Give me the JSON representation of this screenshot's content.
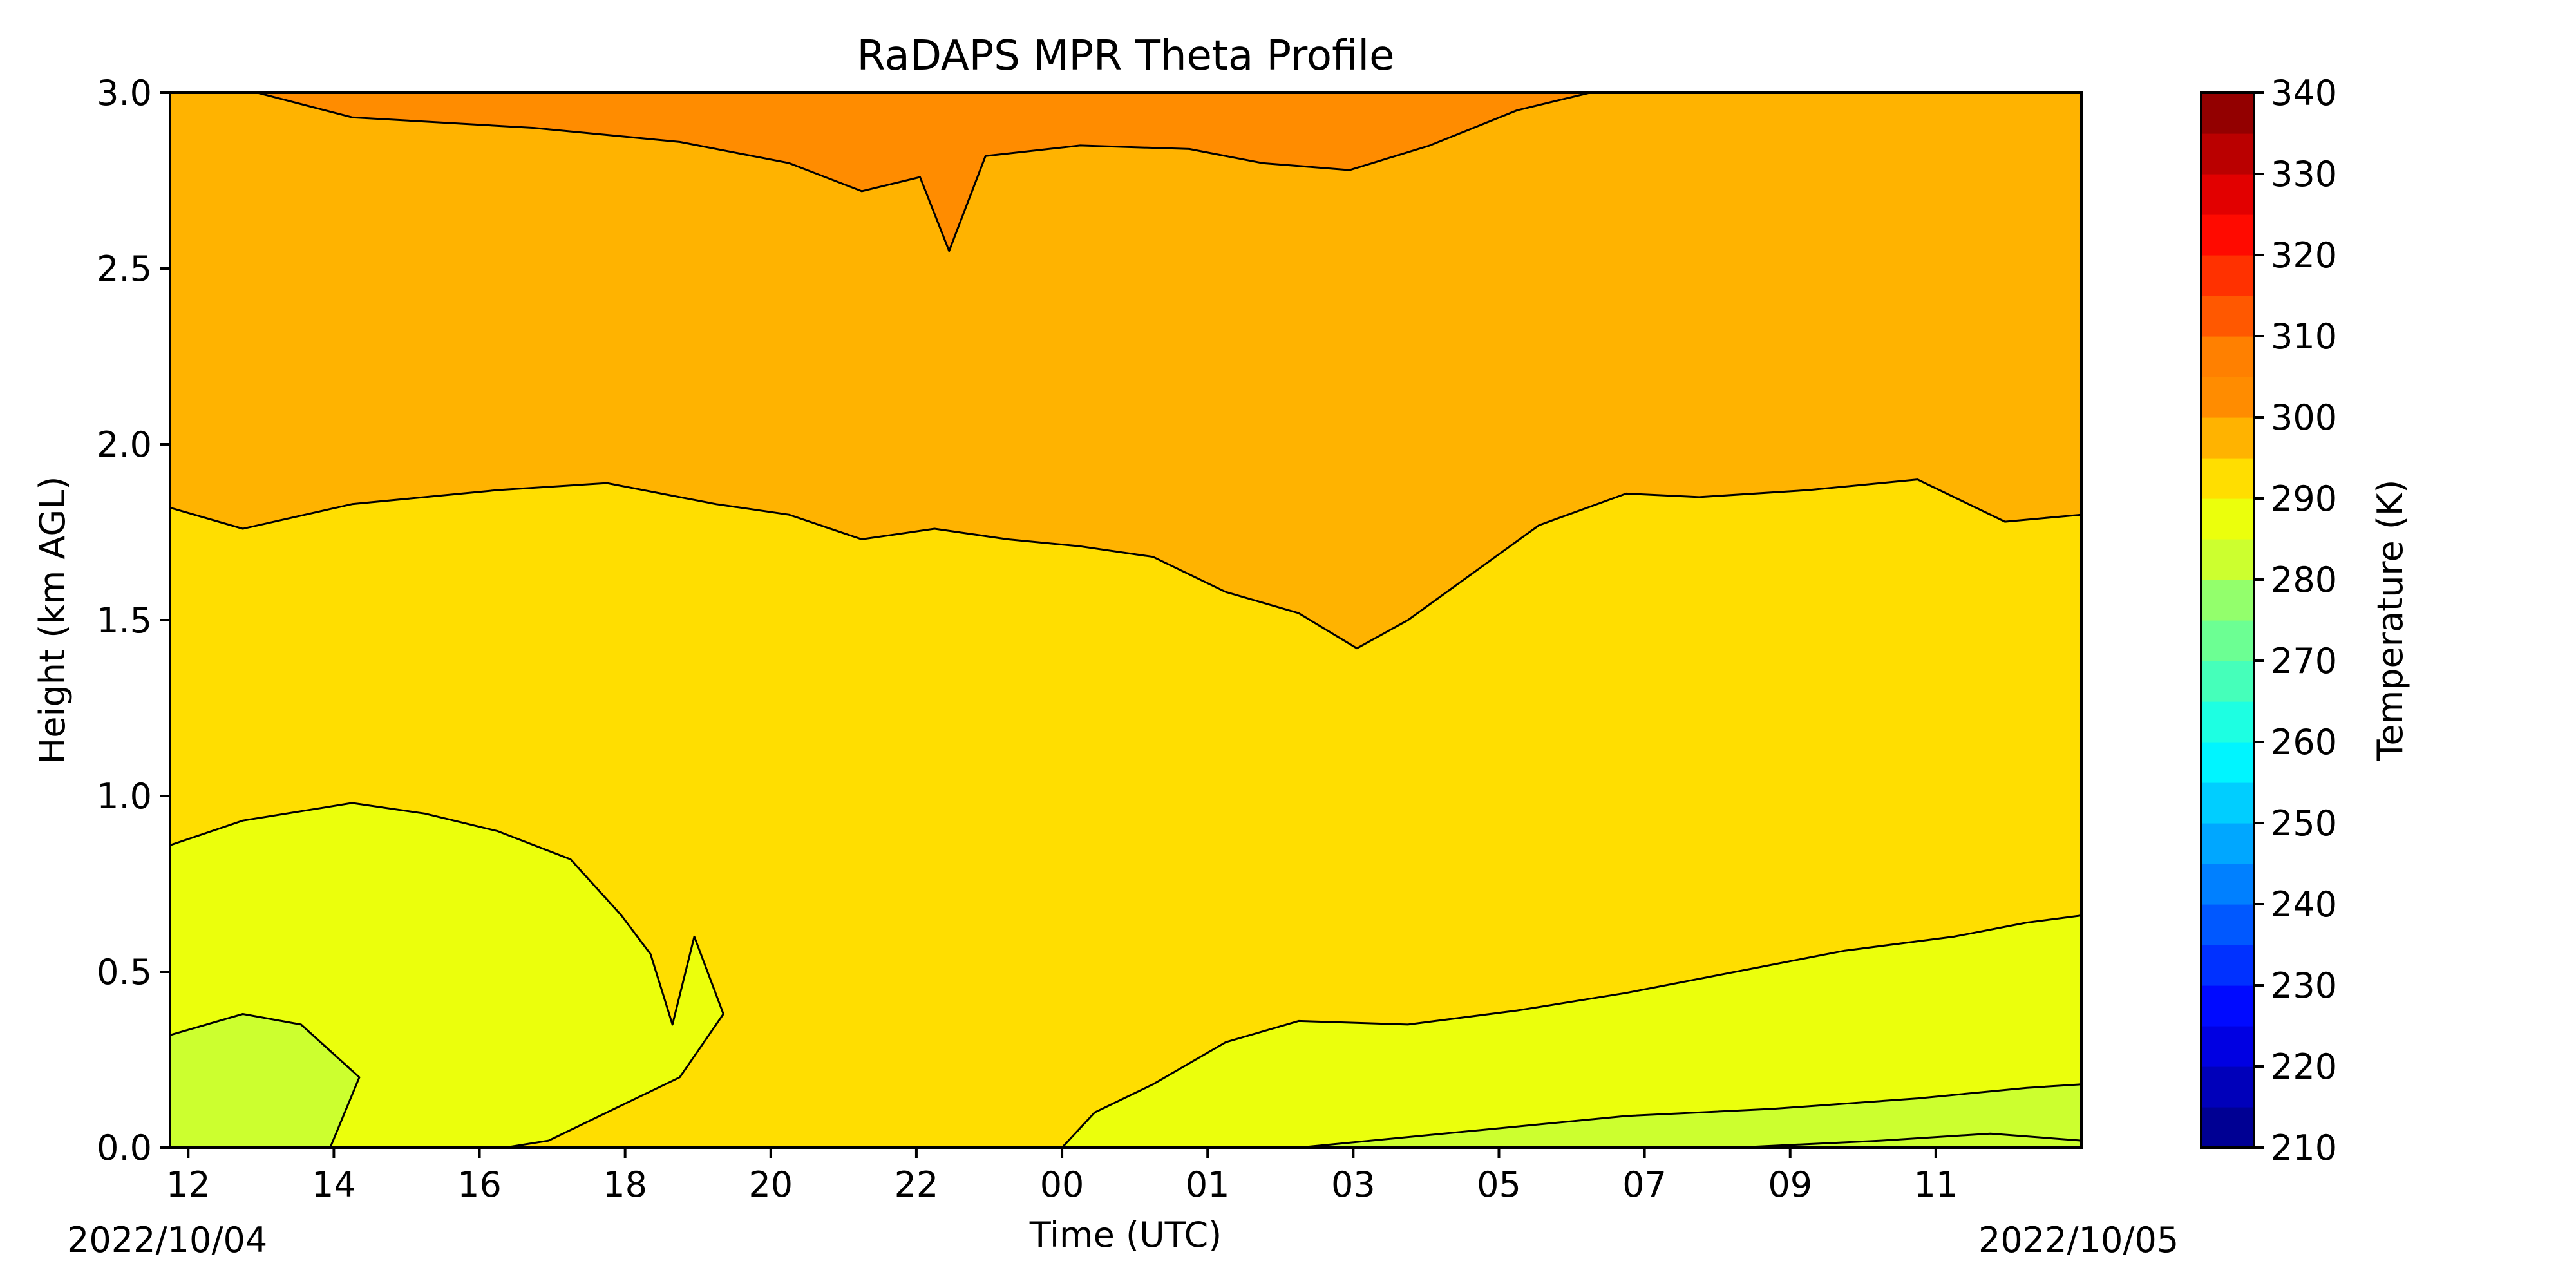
{
  "chart_data": {
    "type": "heatmap",
    "title": "RaDAPS MPR Theta Profile",
    "xlabel": "Time (UTC)",
    "ylabel": "Height (km AGL)",
    "x_tick_labels": [
      "12",
      "14",
      "16",
      "18",
      "20",
      "22",
      "00",
      "01",
      "03",
      "05",
      "07",
      "09",
      "11"
    ],
    "x_tick_hours": [
      0.25,
      2.25,
      4.25,
      6.25,
      8.25,
      10.25,
      12.25,
      14.25,
      16.25,
      18.25,
      20.25,
      22.25,
      24.25
    ],
    "x_range_hours": [
      0,
      26.25
    ],
    "date_labels": {
      "start": "2022/10/04",
      "end": "2022/10/05"
    },
    "ylim": [
      0.0,
      3.0
    ],
    "y_ticks": [
      "0.0",
      "0.5",
      "1.0",
      "1.5",
      "2.0",
      "2.5",
      "3.0"
    ],
    "colorbar": {
      "label": "Temperature (K)",
      "min": 210,
      "max": 340,
      "step": 5,
      "ticks": [
        "210",
        "220",
        "230",
        "240",
        "250",
        "260",
        "270",
        "280",
        "290",
        "300",
        "310",
        "320",
        "330",
        "340"
      ]
    },
    "theta_bands": [
      {
        "min": 280,
        "max": 285,
        "color": "#ccff2f"
      },
      {
        "min": 285,
        "max": 290,
        "color": "#ebff0c"
      },
      {
        "min": 290,
        "max": 295,
        "color": "#ffde00"
      },
      {
        "min": 295,
        "max": 300,
        "color": "#ffb300"
      },
      {
        "min": 300,
        "max": 305,
        "color": "#ff8c00"
      }
    ],
    "contour_boundaries": [
      {
        "level": 305,
        "points": [
          [
            0,
            3.0
          ],
          [
            1.2,
            3.0
          ],
          [
            2.5,
            2.93
          ],
          [
            5,
            2.9
          ],
          [
            7,
            2.86
          ],
          [
            8.5,
            2.8
          ],
          [
            9.5,
            2.72
          ],
          [
            10.3,
            2.76
          ],
          [
            10.7,
            2.55
          ],
          [
            11.2,
            2.82
          ],
          [
            12.5,
            2.85
          ],
          [
            14,
            2.84
          ],
          [
            15,
            2.8
          ],
          [
            16.2,
            2.78
          ],
          [
            17.3,
            2.85
          ],
          [
            18.5,
            2.95
          ],
          [
            19.5,
            3.0
          ],
          [
            26.25,
            3.0
          ]
        ]
      },
      {
        "level": 300,
        "points": [
          [
            0,
            1.82
          ],
          [
            1,
            1.76
          ],
          [
            2.5,
            1.83
          ],
          [
            4.5,
            1.87
          ],
          [
            6,
            1.89
          ],
          [
            7.5,
            1.83
          ],
          [
            8.5,
            1.8
          ],
          [
            9.5,
            1.73
          ],
          [
            10.5,
            1.76
          ],
          [
            11.5,
            1.73
          ],
          [
            12.5,
            1.71
          ],
          [
            13.5,
            1.68
          ],
          [
            14.5,
            1.58
          ],
          [
            15.5,
            1.52
          ],
          [
            16.3,
            1.42
          ],
          [
            17.0,
            1.5
          ],
          [
            17.8,
            1.62
          ],
          [
            18.8,
            1.77
          ],
          [
            20,
            1.86
          ],
          [
            21,
            1.85
          ],
          [
            22.5,
            1.87
          ],
          [
            24,
            1.9
          ],
          [
            25.2,
            1.78
          ],
          [
            26.25,
            1.8
          ]
        ]
      },
      {
        "level": 290,
        "points": [
          [
            0,
            0.86
          ],
          [
            1,
            0.93
          ],
          [
            2.5,
            0.98
          ],
          [
            3.5,
            0.95
          ],
          [
            4.5,
            0.9
          ],
          [
            5.5,
            0.82
          ],
          [
            6.2,
            0.66
          ],
          [
            6.6,
            0.55
          ],
          [
            6.9,
            0.35
          ],
          [
            7.2,
            0.6
          ],
          [
            7.6,
            0.38
          ],
          [
            7.0,
            0.2
          ],
          [
            6.0,
            0.1
          ],
          [
            5.2,
            0.02
          ],
          [
            4.6,
            0.0
          ],
          [
            12.25,
            0.0
          ],
          [
            12.7,
            0.1
          ],
          [
            13.5,
            0.18
          ],
          [
            14.5,
            0.3
          ],
          [
            15.5,
            0.36
          ],
          [
            17,
            0.35
          ],
          [
            18.5,
            0.39
          ],
          [
            20,
            0.44
          ],
          [
            21.5,
            0.5
          ],
          [
            23,
            0.56
          ],
          [
            24.5,
            0.6
          ],
          [
            25.5,
            0.64
          ],
          [
            26.25,
            0.66
          ]
        ]
      },
      {
        "level": 285,
        "points": [
          [
            0,
            0.32
          ],
          [
            1.0,
            0.38
          ],
          [
            1.8,
            0.35
          ],
          [
            2.6,
            0.2
          ],
          [
            2.2,
            0.0
          ],
          [
            0,
            0.0
          ]
        ]
      },
      {
        "level": 285,
        "points": [
          [
            15.5,
            0.0
          ],
          [
            18,
            0.05
          ],
          [
            20,
            0.09
          ],
          [
            22,
            0.11
          ],
          [
            24,
            0.14
          ],
          [
            25.5,
            0.17
          ],
          [
            26.25,
            0.18
          ],
          [
            26.25,
            0.0
          ]
        ]
      },
      {
        "level": 280,
        "points": [
          [
            21.5,
            0.0
          ],
          [
            23.5,
            0.02
          ],
          [
            25,
            0.04
          ],
          [
            26.25,
            0.02
          ]
        ]
      }
    ]
  }
}
